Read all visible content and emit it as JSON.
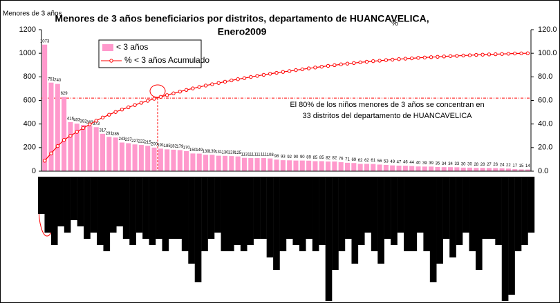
{
  "chart_data": [
    {
      "type": "pareto",
      "title": [
        "Menores de 3 años beneficiarios por distritos, departamento de HUANCAVELICA,",
        "Enero2009"
      ],
      "y_label": "Menores de 3 años",
      "y2_label": "%",
      "series": [
        {
          "name": "< 3 años",
          "color": "#ff99cc",
          "values": [
            1073,
            751,
            740,
            629,
            416,
            403,
            392,
            383,
            373,
            317,
            291,
            285,
            243,
            237,
            227,
            222,
            215,
            200,
            191,
            185,
            182,
            179,
            170,
            150,
            149,
            139,
            139,
            131,
            130,
            128,
            125,
            113,
            111,
            111,
            111,
            108,
            98,
            93,
            92,
            90,
            90,
            89,
            85,
            85,
            82,
            82,
            76,
            71,
            69,
            62,
            62,
            61,
            56,
            53,
            49,
            47,
            46,
            44,
            40,
            39,
            39,
            35,
            34,
            34,
            33,
            30,
            30,
            28,
            28,
            27,
            26,
            24,
            22,
            17,
            15,
            14
          ]
        },
        {
          "name": "% < 3 años Acumulado",
          "color": "#ff0000",
          "axis": "y2",
          "values": [
            8.9,
            15.1,
            21.3,
            26.5,
            30.0,
            33.3,
            36.6,
            39.7,
            42.8,
            45.5,
            47.9,
            50.2,
            52.3,
            54.2,
            56.1,
            58.0,
            59.7,
            61.4,
            63.0,
            64.5,
            66.0,
            67.5,
            68.9,
            70.2,
            71.4,
            72.6,
            73.7,
            74.8,
            75.9,
            77.0,
            78.0,
            78.9,
            79.9,
            80.8,
            81.7,
            82.6,
            83.4,
            84.2,
            84.9,
            85.7,
            86.4,
            87.2,
            87.9,
            88.6,
            89.3,
            89.9,
            90.6,
            91.2,
            91.7,
            92.3,
            92.8,
            93.3,
            93.7,
            94.2,
            94.6,
            95.0,
            95.4,
            95.7,
            96.1,
            96.4,
            96.7,
            97.0,
            97.3,
            97.6,
            97.8,
            98.1,
            98.3,
            98.6,
            98.8,
            99.0,
            99.2,
            99.4,
            99.6,
            99.8,
            99.9,
            100.0
          ]
        }
      ],
      "ylim": [
        0,
        1200
      ],
      "yticks": [
        0,
        200,
        400,
        600,
        800,
        1000,
        1200
      ],
      "y2lim": [
        0,
        120
      ],
      "y2ticks": [
        {
          "value": 0,
          "label": "0.0"
        },
        {
          "value": 20,
          "label": "20.0"
        },
        {
          "value": 40,
          "label": "40.0"
        },
        {
          "value": 60,
          "label": "60.0"
        },
        {
          "value": 80,
          "label": "80.0"
        },
        {
          "value": 100,
          "label": "100.0"
        },
        {
          "value": 120,
          "label": "120.0"
        }
      ],
      "annotation": {
        "text": [
          "El 80% de los niños menores de 3 años se concentran en",
          "33 distritos del departamento de HUANCAVELICA"
        ],
        "y2": 62
      },
      "legend": "upper left"
    },
    {
      "type": "bar-down",
      "color": "#000000",
      "ylim": [
        0,
        100
      ],
      "values": [
        30,
        45,
        55,
        40,
        45,
        35,
        40,
        50,
        45,
        55,
        60,
        45,
        40,
        50,
        55,
        45,
        50,
        55,
        50,
        60,
        50,
        50,
        60,
        70,
        85,
        60,
        50,
        45,
        60,
        60,
        55,
        60,
        55,
        50,
        50,
        65,
        75,
        60,
        50,
        55,
        60,
        50,
        60,
        55,
        100,
        75,
        60,
        50,
        70,
        55,
        45,
        60,
        70,
        50,
        55,
        45,
        60,
        60,
        45,
        60,
        85,
        70,
        50,
        65,
        55,
        45,
        60,
        75,
        50,
        50,
        55,
        100,
        95,
        60,
        55,
        45
      ]
    }
  ]
}
